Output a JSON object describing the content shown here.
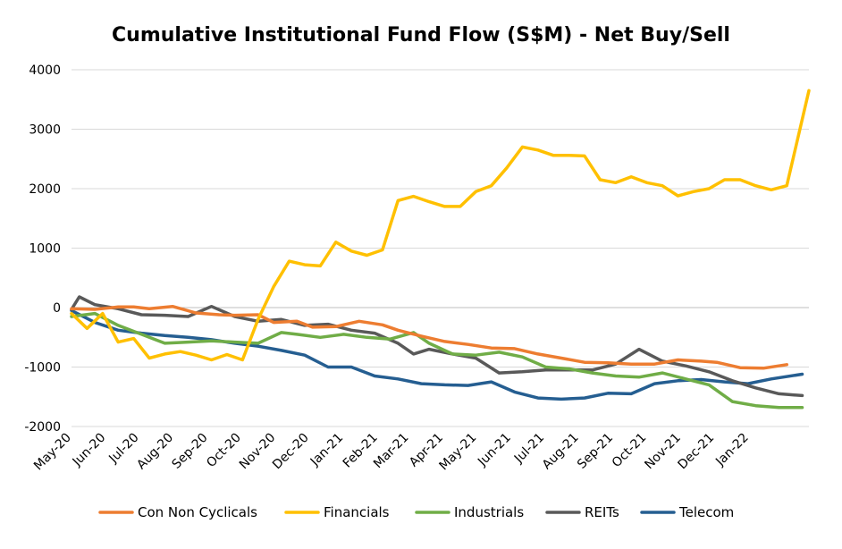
{
  "chart_data": {
    "type": "line",
    "title": "Cumulative Institutional Fund Flow (S$M) - Net Buy/Sell",
    "xlabel": "",
    "ylabel": "",
    "ylim": [
      -2000,
      4000
    ],
    "yticks": [
      4000,
      3000,
      2000,
      1000,
      0,
      -1000,
      -2000
    ],
    "xlim": [
      "2020-05-01",
      "2022-02-24"
    ],
    "xticks": [
      "May-20",
      "Jun-20",
      "Jul-20",
      "Aug-20",
      "Sep-20",
      "Oct-20",
      "Nov-20",
      "Dec-20",
      "Jan-21",
      "Feb-21",
      "Mar-21",
      "Apr-21",
      "May-21",
      "Jun-21",
      "Jul-21",
      "Aug-21",
      "Sep-21",
      "Oct-21",
      "Nov-21",
      "Dec-21",
      "Jan-22"
    ],
    "xtick_dates": [
      "2020-05-01",
      "2020-06-01",
      "2020-07-01",
      "2020-08-01",
      "2020-09-01",
      "2020-10-01",
      "2020-11-01",
      "2020-12-01",
      "2021-01-01",
      "2021-02-01",
      "2021-03-01",
      "2021-04-01",
      "2021-05-01",
      "2021-06-01",
      "2021-07-01",
      "2021-08-01",
      "2021-09-01",
      "2021-10-01",
      "2021-11-01",
      "2021-12-01",
      "2022-01-01"
    ],
    "grid": true,
    "legend": "bottom",
    "series": [
      {
        "name": "Con Non Cyclicals",
        "color": "#ED7D31",
        "x": [
          "2020-05-01",
          "2020-05-22",
          "2020-06-12",
          "2020-06-26",
          "2020-07-10",
          "2020-07-31",
          "2020-08-21",
          "2020-09-11",
          "2020-09-25",
          "2020-10-16",
          "2020-10-30",
          "2020-11-20",
          "2020-12-04",
          "2020-12-25",
          "2021-01-15",
          "2021-02-05",
          "2021-02-19",
          "2021-03-12",
          "2021-04-02",
          "2021-04-23",
          "2021-05-14",
          "2021-06-04",
          "2021-06-25",
          "2021-07-16",
          "2021-08-06",
          "2021-08-27",
          "2021-09-17",
          "2021-10-08",
          "2021-10-29",
          "2021-11-19",
          "2021-12-03",
          "2021-12-24",
          "2022-01-14",
          "2022-02-04"
        ],
        "values": [
          -20,
          -30,
          10,
          10,
          -20,
          20,
          -90,
          -120,
          -130,
          -120,
          -250,
          -230,
          -330,
          -320,
          -230,
          -290,
          -380,
          -480,
          -570,
          -620,
          -680,
          -690,
          -780,
          -850,
          -920,
          -930,
          -950,
          -950,
          -880,
          -900,
          -920,
          -1010,
          -1020,
          -960
        ]
      },
      {
        "name": "Financials",
        "color": "#FFC000",
        "x": [
          "2020-05-01",
          "2020-05-15",
          "2020-05-29",
          "2020-06-12",
          "2020-06-26",
          "2020-07-10",
          "2020-07-24",
          "2020-08-07",
          "2020-08-21",
          "2020-09-04",
          "2020-09-18",
          "2020-10-02",
          "2020-10-16",
          "2020-10-30",
          "2020-11-13",
          "2020-11-27",
          "2020-12-11",
          "2020-12-25",
          "2021-01-08",
          "2021-01-22",
          "2021-02-05",
          "2021-02-19",
          "2021-03-05",
          "2021-03-19",
          "2021-04-02",
          "2021-04-16",
          "2021-04-30",
          "2021-05-14",
          "2021-05-28",
          "2021-06-11",
          "2021-06-25",
          "2021-07-09",
          "2021-07-23",
          "2021-08-06",
          "2021-08-20",
          "2021-09-03",
          "2021-09-17",
          "2021-10-01",
          "2021-10-15",
          "2021-10-29",
          "2021-11-12",
          "2021-11-26",
          "2021-12-10",
          "2021-12-24",
          "2022-01-07",
          "2022-01-21",
          "2022-02-04",
          "2022-02-24"
        ],
        "values": [
          -100,
          -350,
          -100,
          -580,
          -520,
          -850,
          -780,
          -740,
          -800,
          -880,
          -790,
          -880,
          -200,
          350,
          780,
          720,
          700,
          1100,
          950,
          880,
          970,
          1800,
          1870,
          1780,
          1700,
          1700,
          1950,
          2050,
          2350,
          2700,
          2650,
          2560,
          2560,
          2550,
          2150,
          2100,
          2200,
          2100,
          2050,
          1880,
          1950,
          2000,
          2150,
          2150,
          2050,
          1980,
          2050,
          3650
        ]
      },
      {
        "name": "Industrials",
        "color": "#70AD47",
        "x": [
          "2020-05-01",
          "2020-05-22",
          "2020-06-12",
          "2020-07-03",
          "2020-07-24",
          "2020-08-14",
          "2020-09-04",
          "2020-09-25",
          "2020-10-16",
          "2020-11-06",
          "2020-11-20",
          "2020-12-11",
          "2021-01-01",
          "2021-01-22",
          "2021-02-12",
          "2021-03-05",
          "2021-03-19",
          "2021-04-09",
          "2021-04-30",
          "2021-05-21",
          "2021-06-11",
          "2021-07-02",
          "2021-07-23",
          "2021-08-13",
          "2021-09-03",
          "2021-09-24",
          "2021-10-15",
          "2021-11-05",
          "2021-11-26",
          "2021-12-17",
          "2022-01-07",
          "2022-01-28",
          "2022-02-18"
        ],
        "values": [
          -150,
          -100,
          -300,
          -450,
          -600,
          -580,
          -560,
          -580,
          -600,
          -420,
          -450,
          -500,
          -450,
          -500,
          -530,
          -420,
          -600,
          -780,
          -800,
          -750,
          -830,
          -1000,
          -1030,
          -1100,
          -1150,
          -1170,
          -1100,
          -1200,
          -1300,
          -1580,
          -1650,
          -1680,
          -1680
        ]
      },
      {
        "name": "REITs",
        "color": "#595959",
        "x": [
          "2020-05-01",
          "2020-05-08",
          "2020-05-22",
          "2020-06-12",
          "2020-07-03",
          "2020-07-24",
          "2020-08-14",
          "2020-09-04",
          "2020-09-25",
          "2020-10-16",
          "2020-11-06",
          "2020-11-27",
          "2020-12-18",
          "2021-01-08",
          "2021-01-29",
          "2021-02-19",
          "2021-03-05",
          "2021-03-19",
          "2021-04-09",
          "2021-04-30",
          "2021-05-21",
          "2021-06-11",
          "2021-07-02",
          "2021-07-23",
          "2021-08-13",
          "2021-09-03",
          "2021-09-24",
          "2021-10-15",
          "2021-11-05",
          "2021-11-26",
          "2021-12-17",
          "2022-01-07",
          "2022-01-28",
          "2022-02-18"
        ],
        "values": [
          -30,
          180,
          50,
          -20,
          -120,
          -130,
          -150,
          20,
          -150,
          -230,
          -200,
          -300,
          -280,
          -380,
          -430,
          -600,
          -780,
          -700,
          -780,
          -850,
          -1100,
          -1080,
          -1050,
          -1050,
          -1050,
          -950,
          -700,
          -900,
          -980,
          -1080,
          -1230,
          -1350,
          -1450,
          -1480
        ]
      },
      {
        "name": "Telecom",
        "color": "#255E91",
        "x": [
          "2020-05-01",
          "2020-05-22",
          "2020-06-12",
          "2020-07-03",
          "2020-07-24",
          "2020-08-14",
          "2020-09-04",
          "2020-09-25",
          "2020-10-16",
          "2020-11-06",
          "2020-11-27",
          "2020-12-18",
          "2021-01-08",
          "2021-01-29",
          "2021-02-19",
          "2021-03-12",
          "2021-04-02",
          "2021-04-23",
          "2021-05-14",
          "2021-06-04",
          "2021-06-25",
          "2021-07-16",
          "2021-08-06",
          "2021-08-27",
          "2021-09-17",
          "2021-10-08",
          "2021-10-29",
          "2021-11-19",
          "2021-12-10",
          "2021-12-31",
          "2022-01-21",
          "2022-02-18"
        ],
        "values": [
          -50,
          -250,
          -380,
          -430,
          -470,
          -500,
          -540,
          -600,
          -650,
          -720,
          -800,
          -1000,
          -1000,
          -1150,
          -1200,
          -1280,
          -1300,
          -1310,
          -1250,
          -1420,
          -1520,
          -1540,
          -1520,
          -1440,
          -1450,
          -1280,
          -1230,
          -1210,
          -1250,
          -1280,
          -1200,
          -1120
        ]
      }
    ]
  }
}
